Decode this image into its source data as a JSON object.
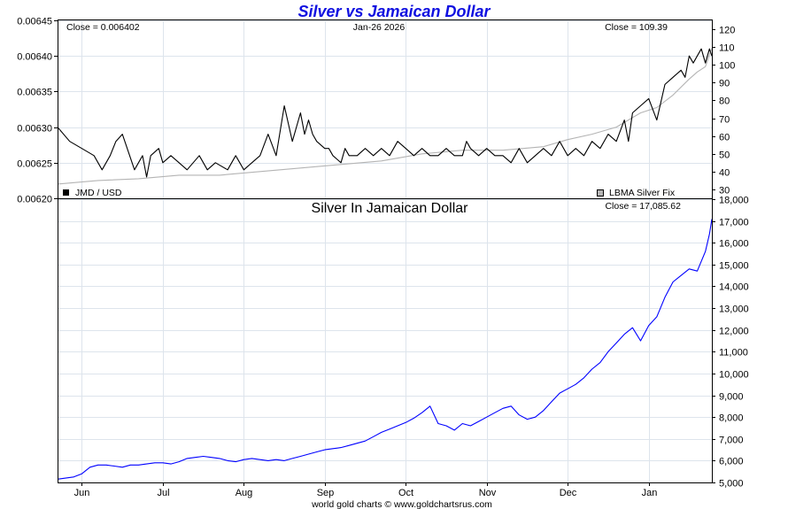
{
  "chart_data": [
    {
      "type": "line",
      "title": "Silver vs Jamaican Dollar",
      "date_label": "Jan-26  2026",
      "left_close_label": "Close = 0.006402",
      "right_close_label": "Close = 109.39",
      "y_left_lim": [
        0.0062,
        0.00645
      ],
      "y_left_ticks": [
        "0.00620",
        "0.00625",
        "0.00630",
        "0.00635",
        "0.00640",
        "0.00645"
      ],
      "y_right_lim": [
        25,
        125
      ],
      "y_right_ticks": [
        "30",
        "40",
        "50",
        "60",
        "70",
        "80",
        "90",
        "100",
        "110",
        "120"
      ],
      "x_lim": [
        0,
        8.08
      ],
      "grid": true,
      "legend": [
        {
          "label": "JMD / USD",
          "color": "#000000",
          "position": "bottom-left"
        },
        {
          "label": "LBMA Silver Fix",
          "color": "#b4b4b4",
          "position": "bottom-right"
        }
      ],
      "series": [
        {
          "name": "JMD / USD",
          "axis": "left",
          "color": "#000000",
          "x": [
            0,
            0.15,
            0.3,
            0.45,
            0.55,
            0.65,
            0.72,
            0.8,
            0.95,
            1.05,
            1.1,
            1.15,
            1.25,
            1.3,
            1.4,
            1.5,
            1.6,
            1.75,
            1.85,
            1.95,
            2.1,
            2.2,
            2.3,
            2.4,
            2.5,
            2.6,
            2.7,
            2.8,
            2.9,
            3.0,
            3.05,
            3.1,
            3.15,
            3.2,
            3.3,
            3.35,
            3.4,
            3.5,
            3.55,
            3.6,
            3.7,
            3.8,
            3.9,
            4.0,
            4.1,
            4.2,
            4.3,
            4.4,
            4.5,
            4.6,
            4.7,
            4.8,
            4.9,
            5.0,
            5.05,
            5.1,
            5.2,
            5.3,
            5.4,
            5.5,
            5.6,
            5.7,
            5.8,
            5.9,
            6.0,
            6.1,
            6.2,
            6.3,
            6.4,
            6.5,
            6.6,
            6.7,
            6.8,
            6.9,
            7.0,
            7.05,
            7.1,
            7.2,
            7.3,
            7.4,
            7.5,
            7.6,
            7.7,
            7.75,
            7.8,
            7.85,
            7.9,
            7.95,
            8.0,
            8.05,
            8.08
          ],
          "values": [
            0.0063,
            0.00628,
            0.00627,
            0.00626,
            0.00624,
            0.00626,
            0.00628,
            0.00629,
            0.00624,
            0.00626,
            0.00623,
            0.00626,
            0.00627,
            0.00625,
            0.00626,
            0.00625,
            0.00624,
            0.00626,
            0.00624,
            0.00625,
            0.00624,
            0.00626,
            0.00624,
            0.00625,
            0.00626,
            0.00629,
            0.00626,
            0.00633,
            0.00628,
            0.00632,
            0.00629,
            0.00631,
            0.00629,
            0.00628,
            0.00627,
            0.00627,
            0.00626,
            0.00625,
            0.00627,
            0.00626,
            0.00626,
            0.00627,
            0.00626,
            0.00627,
            0.00626,
            0.00628,
            0.00627,
            0.00626,
            0.00627,
            0.00626,
            0.00626,
            0.00627,
            0.00626,
            0.00626,
            0.00628,
            0.00627,
            0.00626,
            0.00627,
            0.00626,
            0.00626,
            0.00625,
            0.00627,
            0.00625,
            0.00626,
            0.00627,
            0.00626,
            0.00628,
            0.00626,
            0.00627,
            0.00626,
            0.00628,
            0.00627,
            0.00629,
            0.00628,
            0.00631,
            0.00628,
            0.00632,
            0.00633,
            0.00634,
            0.00631,
            0.00636,
            0.00637,
            0.00638,
            0.00637,
            0.0064,
            0.00639,
            0.0064,
            0.00641,
            0.00639,
            0.00641,
            0.0064
          ]
        },
        {
          "name": "LBMA Silver Fix",
          "axis": "right",
          "color": "#b4b4b4",
          "x": [
            0,
            0.5,
            1.0,
            1.5,
            2.0,
            2.5,
            3.0,
            3.5,
            4.0,
            4.5,
            5.0,
            5.5,
            6.0,
            6.3,
            6.6,
            6.9,
            7.2,
            7.4,
            7.6,
            7.8,
            7.9,
            8.0,
            8.08
          ],
          "values": [
            33,
            35,
            36,
            38,
            38,
            40,
            42,
            44,
            46,
            50,
            52,
            52,
            54,
            58,
            61,
            65,
            73,
            76,
            83,
            92,
            96,
            99,
            109.39
          ]
        }
      ]
    },
    {
      "type": "line",
      "title": "Silver In Jamaican Dollar",
      "close_label": "Close = 17,085.62",
      "ylim": [
        5000,
        18000
      ],
      "y_ticks": [
        "5,000",
        "6,000",
        "7,000",
        "8,000",
        "9,000",
        "10,000",
        "11,000",
        "12,000",
        "13,000",
        "14,000",
        "15,000",
        "16,000",
        "17,000",
        "18,000"
      ],
      "x_lim": [
        0,
        8.08
      ],
      "x_ticks": [
        {
          "label": "Jun",
          "x": 0.3
        },
        {
          "label": "Jul",
          "x": 1.3
        },
        {
          "label": "Aug",
          "x": 2.3
        },
        {
          "label": "Sep",
          "x": 3.3
        },
        {
          "label": "Oct",
          "x": 4.3
        },
        {
          "label": "Nov",
          "x": 5.3
        },
        {
          "label": "Dec",
          "x": 6.3
        },
        {
          "label": "Jan",
          "x": 7.3
        }
      ],
      "grid": true,
      "series": [
        {
          "color": "#0000ff",
          "x": [
            0,
            0.1,
            0.2,
            0.3,
            0.4,
            0.5,
            0.6,
            0.7,
            0.8,
            0.9,
            1.0,
            1.1,
            1.2,
            1.3,
            1.4,
            1.5,
            1.6,
            1.7,
            1.8,
            1.9,
            2.0,
            2.1,
            2.2,
            2.3,
            2.4,
            2.5,
            2.6,
            2.7,
            2.8,
            2.9,
            3.0,
            3.1,
            3.2,
            3.3,
            3.4,
            3.5,
            3.6,
            3.7,
            3.8,
            3.9,
            4.0,
            4.1,
            4.2,
            4.3,
            4.4,
            4.5,
            4.6,
            4.7,
            4.8,
            4.9,
            5.0,
            5.1,
            5.2,
            5.3,
            5.4,
            5.5,
            5.6,
            5.7,
            5.8,
            5.9,
            6.0,
            6.1,
            6.2,
            6.3,
            6.4,
            6.5,
            6.6,
            6.7,
            6.8,
            6.9,
            7.0,
            7.1,
            7.2,
            7.3,
            7.4,
            7.5,
            7.6,
            7.7,
            7.8,
            7.9,
            8.0,
            8.05,
            8.08
          ],
          "values": [
            5150,
            5200,
            5250,
            5400,
            5700,
            5800,
            5800,
            5750,
            5700,
            5800,
            5800,
            5850,
            5900,
            5900,
            5850,
            5950,
            6100,
            6150,
            6200,
            6150,
            6100,
            6000,
            5950,
            6050,
            6100,
            6050,
            6000,
            6050,
            6000,
            6100,
            6200,
            6300,
            6400,
            6500,
            6550,
            6600,
            6700,
            6800,
            6900,
            7100,
            7300,
            7450,
            7600,
            7750,
            7950,
            8200,
            8500,
            7700,
            7600,
            7400,
            7700,
            7600,
            7800,
            8000,
            8200,
            8400,
            8500,
            8100,
            7900,
            8000,
            8300,
            8700,
            9100,
            9300,
            9500,
            9800,
            10200,
            10500,
            11000,
            11400,
            11800,
            12100,
            11500,
            12200,
            12600,
            13500,
            14200,
            14500,
            14800,
            14700,
            15600,
            16400,
            17085.62
          ]
        }
      ]
    }
  ],
  "footer": "world gold charts © www.goldchartsrus.com"
}
